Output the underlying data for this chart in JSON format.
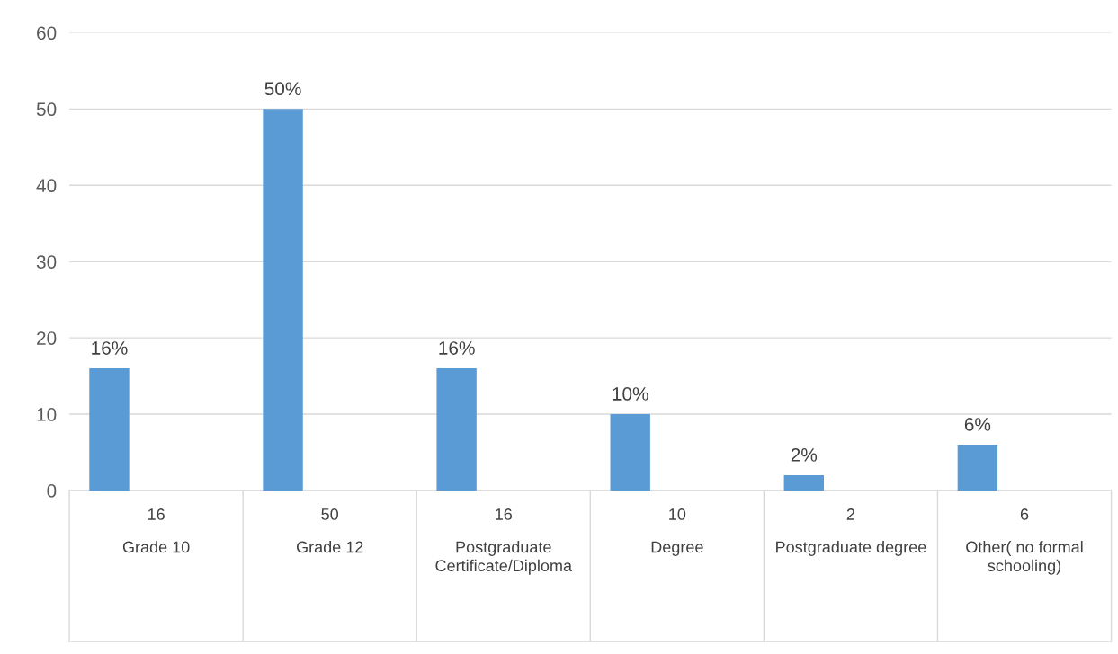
{
  "chart_data": {
    "type": "bar",
    "categories": [
      "Grade 10",
      "Grade 12",
      "Postgraduate Certificate/Diploma",
      "Degree",
      "Postgraduate degree",
      "Other( no formal schooling)"
    ],
    "values": [
      16,
      50,
      16,
      10,
      2,
      6
    ],
    "color": "#5b9bd5",
    "value_labels": [
      "16%",
      "50%",
      "16%",
      "10%",
      "2%",
      "6%"
    ],
    "annotations": [
      "16",
      "50",
      "16",
      "10",
      "2",
      "6"
    ],
    "ylim": [
      0,
      60
    ],
    "yticks": [
      0,
      10,
      20,
      30,
      40,
      50,
      60
    ],
    "grid": "y",
    "legend": false
  }
}
